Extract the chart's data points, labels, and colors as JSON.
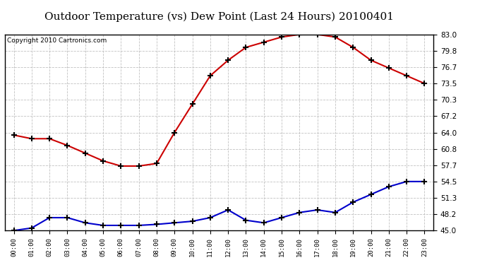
{
  "title": "Outdoor Temperature (vs) Dew Point (Last 24 Hours) 20100401",
  "copyright": "Copyright 2010 Cartronics.com",
  "hours": [
    "00:00",
    "01:00",
    "02:00",
    "03:00",
    "04:00",
    "05:00",
    "06:00",
    "07:00",
    "08:00",
    "09:00",
    "10:00",
    "11:00",
    "12:00",
    "13:00",
    "14:00",
    "15:00",
    "16:00",
    "17:00",
    "18:00",
    "19:00",
    "20:00",
    "21:00",
    "22:00",
    "23:00"
  ],
  "temp": [
    63.5,
    62.8,
    62.8,
    61.5,
    60.0,
    58.5,
    57.5,
    57.5,
    58.0,
    64.0,
    69.5,
    75.0,
    78.0,
    80.5,
    81.5,
    82.5,
    83.0,
    83.0,
    82.5,
    80.5,
    78.0,
    76.5,
    75.0,
    73.5
  ],
  "dew": [
    45.0,
    45.5,
    47.5,
    47.5,
    46.5,
    46.0,
    46.0,
    46.0,
    46.2,
    46.5,
    46.8,
    47.5,
    49.0,
    47.0,
    46.5,
    47.5,
    48.5,
    49.0,
    48.5,
    50.5,
    52.0,
    53.5,
    54.5,
    54.5
  ],
  "temp_color": "#cc0000",
  "dew_color": "#0000cc",
  "bg_color": "#ffffff",
  "grid_color": "#bbbbbb",
  "yticks": [
    45.0,
    48.2,
    51.3,
    54.5,
    57.7,
    60.8,
    64.0,
    67.2,
    70.3,
    73.5,
    76.7,
    79.8,
    83.0
  ],
  "ylim": [
    45.0,
    83.0
  ],
  "title_fontsize": 11,
  "copyright_fontsize": 6.5
}
